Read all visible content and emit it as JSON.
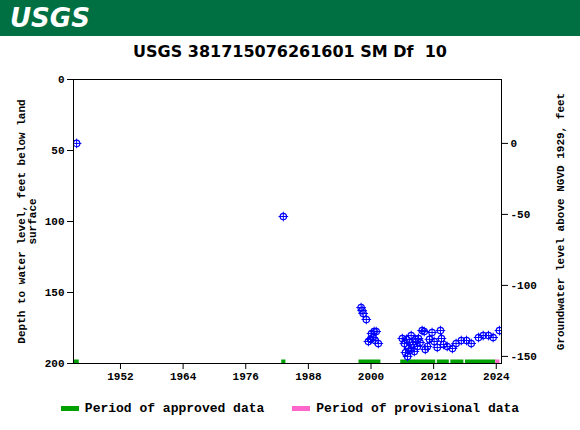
{
  "chart_data": {
    "type": "scatter",
    "logo": "USGS",
    "title": "USGS 381715076261601 SM Df  10",
    "x": [
      1943.6,
      1983.2,
      1998.1,
      1998.3,
      1998.5,
      1999.1,
      1999.5,
      1999.9,
      2000.1,
      2000.4,
      2000.6,
      2000.8,
      2001.0,
      2001.4,
      2006.0,
      2006.4,
      2006.6,
      2006.8,
      2007.0,
      2007.2,
      2007.4,
      2007.5,
      2007.7,
      2008.1,
      2008.3,
      2008.5,
      2008.9,
      2009.1,
      2009.4,
      2009.8,
      2010.2,
      2010.4,
      2010.8,
      2011.2,
      2011.7,
      2012.1,
      2012.7,
      2013.3,
      2013.5,
      2013.9,
      2014.6,
      2015.6,
      2016.3,
      2017.3,
      2018.3,
      2019.2,
      2020.6,
      2021.5,
      2022.5,
      2023.4,
      2024.6
    ],
    "values": [
      45,
      96.5,
      160.6,
      162.7,
      164.8,
      169,
      184.5,
      183,
      178.9,
      181.7,
      177.5,
      183.8,
      177.5,
      185.9,
      182.4,
      186,
      192.3,
      183,
      195,
      189.4,
      185.2,
      190.8,
      180.3,
      186.6,
      191.5,
      183,
      188,
      182.4,
      185.2,
      176.8,
      177.5,
      190.1,
      188,
      183,
      178.2,
      184.5,
      188.7,
      176.8,
      182.4,
      186.6,
      188,
      189.4,
      185.9,
      183.8,
      183.8,
      185.9,
      181.7,
      180.3,
      180.3,
      181.7,
      176.8
    ],
    "color": "#0000ff",
    "marker": "circle-plus",
    "xlim": [
      1943,
      2025
    ],
    "xticks": [
      1952,
      1964,
      1976,
      1988,
      2000,
      2012,
      2024
    ],
    "ylim": [
      200,
      0
    ],
    "yticks": [
      0,
      50,
      100,
      150,
      200
    ],
    "ylabel": "Depth to water level, feet below land\nsurface",
    "y2lim": [
      -155,
      45
    ],
    "y2ticks": [
      0,
      -50,
      -100,
      -150
    ],
    "y2label": "Groundwater level above NGVD 1929, feet",
    "periods": [
      {
        "name": "Period of approved data",
        "color": "#00a000",
        "ranges": [
          [
            1943,
            1944
          ],
          [
            1982.8,
            1983.6
          ],
          [
            1997.6,
            2001.8
          ],
          [
            2005.6,
            2012.3
          ],
          [
            2012.6,
            2014.9
          ],
          [
            2015.2,
            2017.7
          ],
          [
            2018,
            2023.8
          ]
        ]
      },
      {
        "name": "Period of provisional data",
        "color": "#ff66cc",
        "ranges": [
          [
            2023.8,
            2024.6
          ]
        ]
      }
    ]
  }
}
